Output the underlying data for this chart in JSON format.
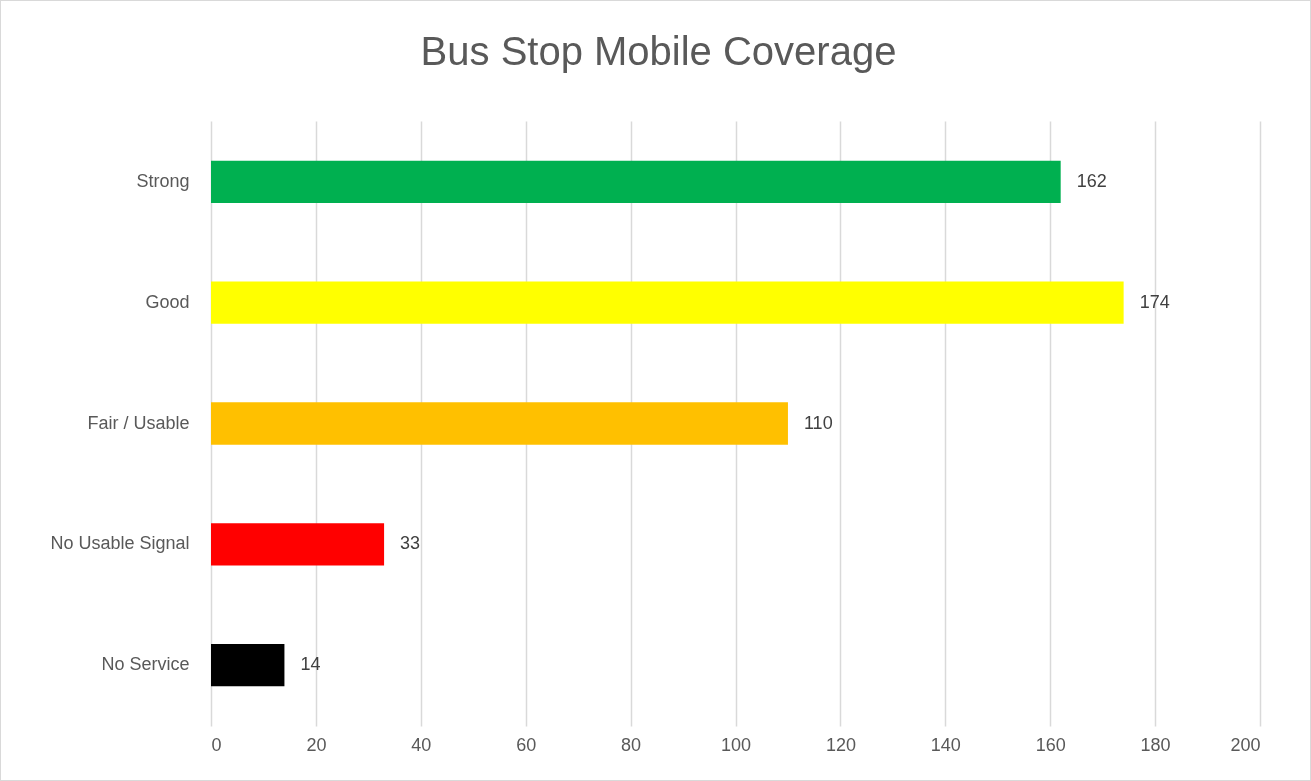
{
  "chart_data": {
    "type": "bar",
    "orientation": "horizontal",
    "title": "Bus Stop Mobile Coverage",
    "categories": [
      "Strong",
      "Good",
      "Fair / Usable",
      "No Usable Signal",
      "No Service"
    ],
    "values": [
      162,
      174,
      110,
      33,
      14
    ],
    "colors": [
      "#00b050",
      "#ffff00",
      "#ffc000",
      "#ff0000",
      "#000000"
    ],
    "xlim": [
      0,
      200
    ],
    "xticks": [
      0,
      20,
      40,
      60,
      80,
      100,
      120,
      140,
      160,
      180,
      200
    ],
    "grid": "x",
    "data_labels": true
  }
}
